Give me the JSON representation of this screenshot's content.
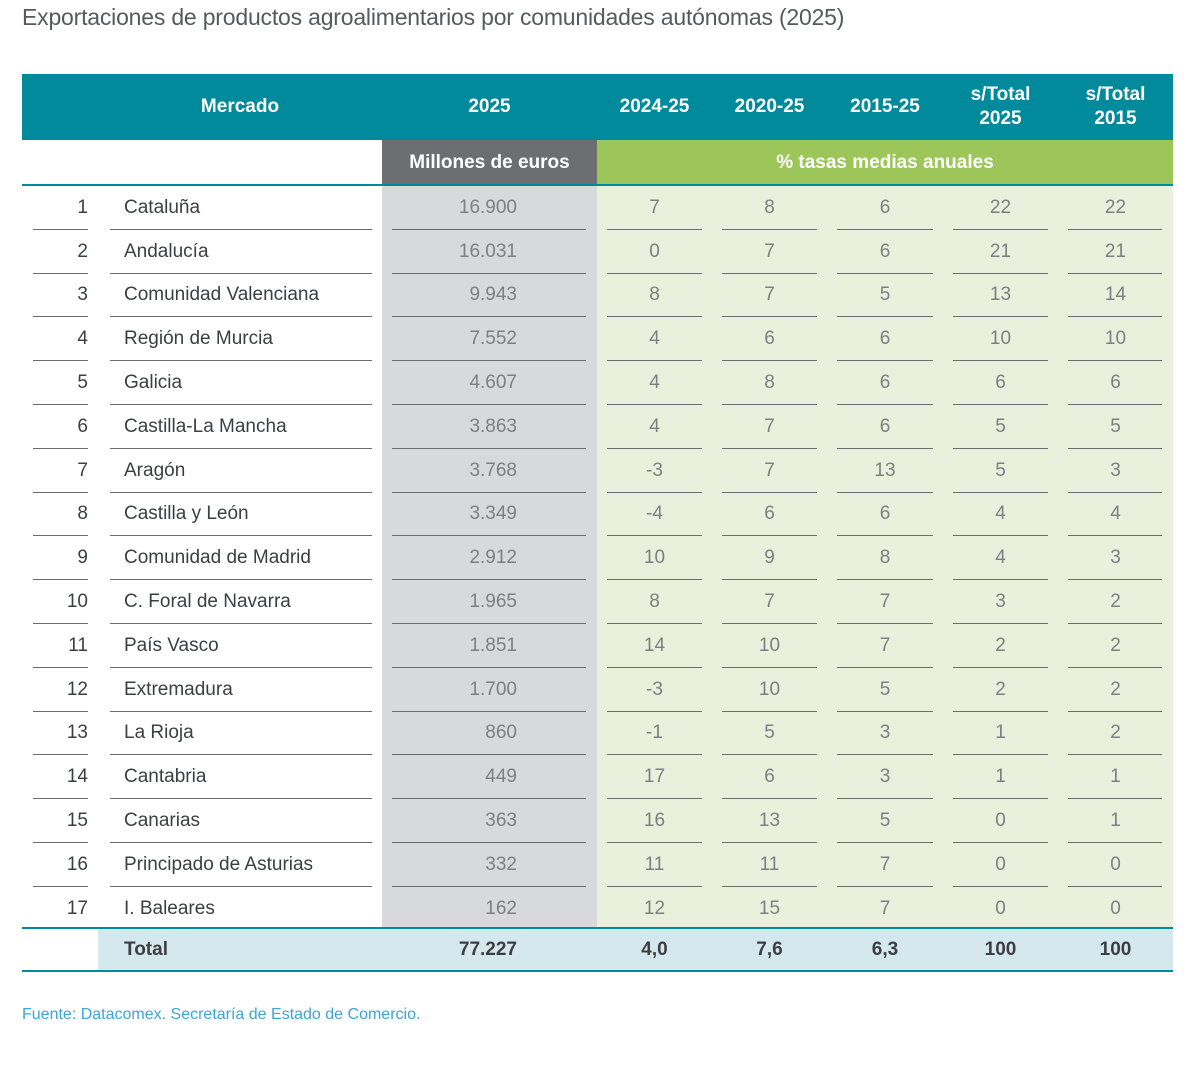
{
  "title": "Exportaciones de productos agroalimentarios por comunidades autónomas (2025)",
  "source": "Fuente: Datacomex. Secretaría de Estado de Comercio.",
  "colors": {
    "header": "#008a9c",
    "gray_band": "#6d6e71",
    "green_band": "#9cc65a",
    "gray_column": "#d8d9db",
    "green_columns": "#e9f1dc",
    "total_row": "#d4e8ee",
    "source_text": "#3aa6d6"
  },
  "chart_data": {
    "type": "table",
    "columns": [
      "Mercado",
      "2025",
      "2024-25",
      "2020-25",
      "2015-25",
      "s/Total 2025",
      "s/Total 2015"
    ],
    "column_lines": {
      "s_total_2025": [
        "s/Total",
        "2025"
      ],
      "s_total_2015": [
        "s/Total",
        "2015"
      ]
    },
    "subheaders": {
      "value_unit": "Millones de euros",
      "rates": "% tasas medias anuales"
    },
    "rows": [
      {
        "rank": "1",
        "name": "Cataluña",
        "value": "16.900",
        "r2425": "7",
        "r2025": "8",
        "r1525": "6",
        "s2025": "22",
        "s2015": "22"
      },
      {
        "rank": "2",
        "name": "Andalucía",
        "value": "16.031",
        "r2425": "0",
        "r2025": "7",
        "r1525": "6",
        "s2025": "21",
        "s2015": "21"
      },
      {
        "rank": "3",
        "name": "Comunidad Valenciana",
        "value": "9.943",
        "r2425": "8",
        "r2025": "7",
        "r1525": "5",
        "s2025": "13",
        "s2015": "14"
      },
      {
        "rank": "4",
        "name": "Región de Murcia",
        "value": "7.552",
        "r2425": "4",
        "r2025": "6",
        "r1525": "6",
        "s2025": "10",
        "s2015": "10"
      },
      {
        "rank": "5",
        "name": "Galicia",
        "value": "4.607",
        "r2425": "4",
        "r2025": "8",
        "r1525": "6",
        "s2025": "6",
        "s2015": "6"
      },
      {
        "rank": "6",
        "name": "Castilla-La Mancha",
        "value": "3.863",
        "r2425": "4",
        "r2025": "7",
        "r1525": "6",
        "s2025": "5",
        "s2015": "5"
      },
      {
        "rank": "7",
        "name": "Aragón",
        "value": "3.768",
        "r2425": "-3",
        "r2025": "7",
        "r1525": "13",
        "s2025": "5",
        "s2015": "3"
      },
      {
        "rank": "8",
        "name": "Castilla y León",
        "value": "3.349",
        "r2425": "-4",
        "r2025": "6",
        "r1525": "6",
        "s2025": "4",
        "s2015": "4"
      },
      {
        "rank": "9",
        "name": "Comunidad de Madrid",
        "value": "2.912",
        "r2425": "10",
        "r2025": "9",
        "r1525": "8",
        "s2025": "4",
        "s2015": "3"
      },
      {
        "rank": "10",
        "name": "C. Foral de Navarra",
        "value": "1.965",
        "r2425": "8",
        "r2025": "7",
        "r1525": "7",
        "s2025": "3",
        "s2015": "2"
      },
      {
        "rank": "11",
        "name": "País Vasco",
        "value": "1.851",
        "r2425": "14",
        "r2025": "10",
        "r1525": "7",
        "s2025": "2",
        "s2015": "2"
      },
      {
        "rank": "12",
        "name": "Extremadura",
        "value": "1.700",
        "r2425": "-3",
        "r2025": "10",
        "r1525": "5",
        "s2025": "2",
        "s2015": "2"
      },
      {
        "rank": "13",
        "name": "La Rioja",
        "value": "860",
        "r2425": "-1",
        "r2025": "5",
        "r1525": "3",
        "s2025": "1",
        "s2015": "2"
      },
      {
        "rank": "14",
        "name": "Cantabria",
        "value": "449",
        "r2425": "17",
        "r2025": "6",
        "r1525": "3",
        "s2025": "1",
        "s2015": "1"
      },
      {
        "rank": "15",
        "name": "Canarias",
        "value": "363",
        "r2425": "16",
        "r2025": "13",
        "r1525": "5",
        "s2025": "0",
        "s2015": "1"
      },
      {
        "rank": "16",
        "name": "Principado de Asturias",
        "value": "332",
        "r2425": "11",
        "r2025": "11",
        "r1525": "7",
        "s2025": "0",
        "s2015": "0"
      },
      {
        "rank": "17",
        "name": "I. Baleares",
        "value": "162",
        "r2425": "12",
        "r2025": "15",
        "r1525": "7",
        "s2025": "0",
        "s2015": "0"
      }
    ],
    "total": {
      "name": "Total",
      "value": "77.227",
      "r2425": "4,0",
      "r2025": "7,6",
      "r1525": "6,3",
      "s2025": "100",
      "s2015": "100"
    }
  }
}
